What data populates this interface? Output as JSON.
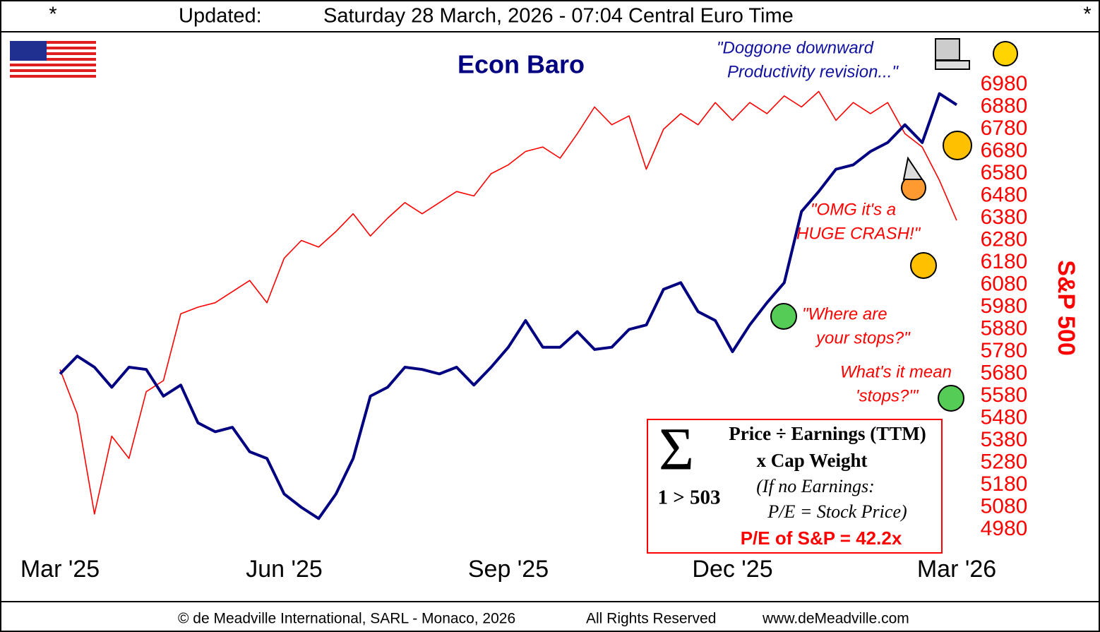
{
  "header": {
    "left_mark": "*",
    "label": "Updated:",
    "timestamp": "Saturday 28 March, 2026 - 07:04 Central Euro Time",
    "right_mark": "*"
  },
  "chart_data": {
    "type": "line",
    "categories": [
      "Mar '25",
      null,
      null,
      null,
      null,
      null,
      null,
      null,
      null,
      null,
      null,
      null,
      null,
      "Jun '25",
      null,
      null,
      null,
      null,
      null,
      null,
      null,
      null,
      null,
      null,
      null,
      null,
      "Sep '25",
      null,
      null,
      null,
      null,
      null,
      null,
      null,
      null,
      null,
      null,
      null,
      null,
      "Dec '25",
      null,
      null,
      null,
      null,
      null,
      null,
      null,
      null,
      null,
      null,
      null,
      null,
      "Mar '26"
    ],
    "series": [
      {
        "name": "S&P 500",
        "color": "#ff0000",
        "values": [
          5700,
          5500,
          5050,
          5400,
          5300,
          5600,
          5650,
          5950,
          5980,
          6000,
          6050,
          6100,
          6000,
          6200,
          6280,
          6250,
          6320,
          6400,
          6300,
          6380,
          6450,
          6400,
          6450,
          6500,
          6480,
          6580,
          6620,
          6680,
          6700,
          6650,
          6760,
          6880,
          6800,
          6840,
          6600,
          6780,
          6850,
          6800,
          6900,
          6820,
          6900,
          6850,
          6930,
          6880,
          6950,
          6820,
          6900,
          6850,
          6900,
          6760,
          6700,
          6550,
          6370
        ]
      },
      {
        "name": "Econ Baro",
        "color": "#000080",
        "axis": "y2",
        "values": [
          35,
          39,
          36.5,
          32,
          36.5,
          36,
          30,
          32.5,
          24,
          22,
          23,
          17.5,
          16,
          8,
          5,
          2.5,
          8,
          16,
          30,
          32,
          36.5,
          36,
          35,
          36.5,
          32.5,
          36.5,
          41,
          47,
          41,
          41,
          44.5,
          40.5,
          41,
          45,
          46,
          54,
          55.5,
          49,
          47,
          40,
          46,
          51,
          55.5,
          71.5,
          76,
          81,
          82,
          85,
          87,
          91,
          87,
          98,
          95.5
        ]
      }
    ],
    "ylim": [
      4980,
      6980
    ],
    "yticks": [
      4980,
      5080,
      5180,
      5280,
      5380,
      5480,
      5580,
      5680,
      5780,
      5880,
      5980,
      6080,
      6180,
      6280,
      6380,
      6480,
      6580,
      6680,
      6780,
      6880,
      6980
    ],
    "y2lim": [
      0,
      100
    ],
    "grid": false
  },
  "annotations": [
    "\"Doggone downward",
    "Productivity revision...\"",
    "\"OMG it's a",
    "HUGE CRASH!\"",
    "\"Where are",
    "your stops?\"",
    "What's it mean",
    "'stops?'\""
  ],
  "pe_box": {
    "symbol": "Σ",
    "range": "1 > 503",
    "line1": "Price ÷ Earnings (TTM)",
    "line2": "x Cap Weight",
    "line3": "(If no Earnings:",
    "line4": "P/E = Stock Price)",
    "result": "P/E of S&P = 42.2x"
  },
  "footer": {
    "copyright": "© de Meadville International, SARL - Monaco, 2026",
    "rights": "All Rights Reserved",
    "url": "www.deMeadville.com"
  }
}
